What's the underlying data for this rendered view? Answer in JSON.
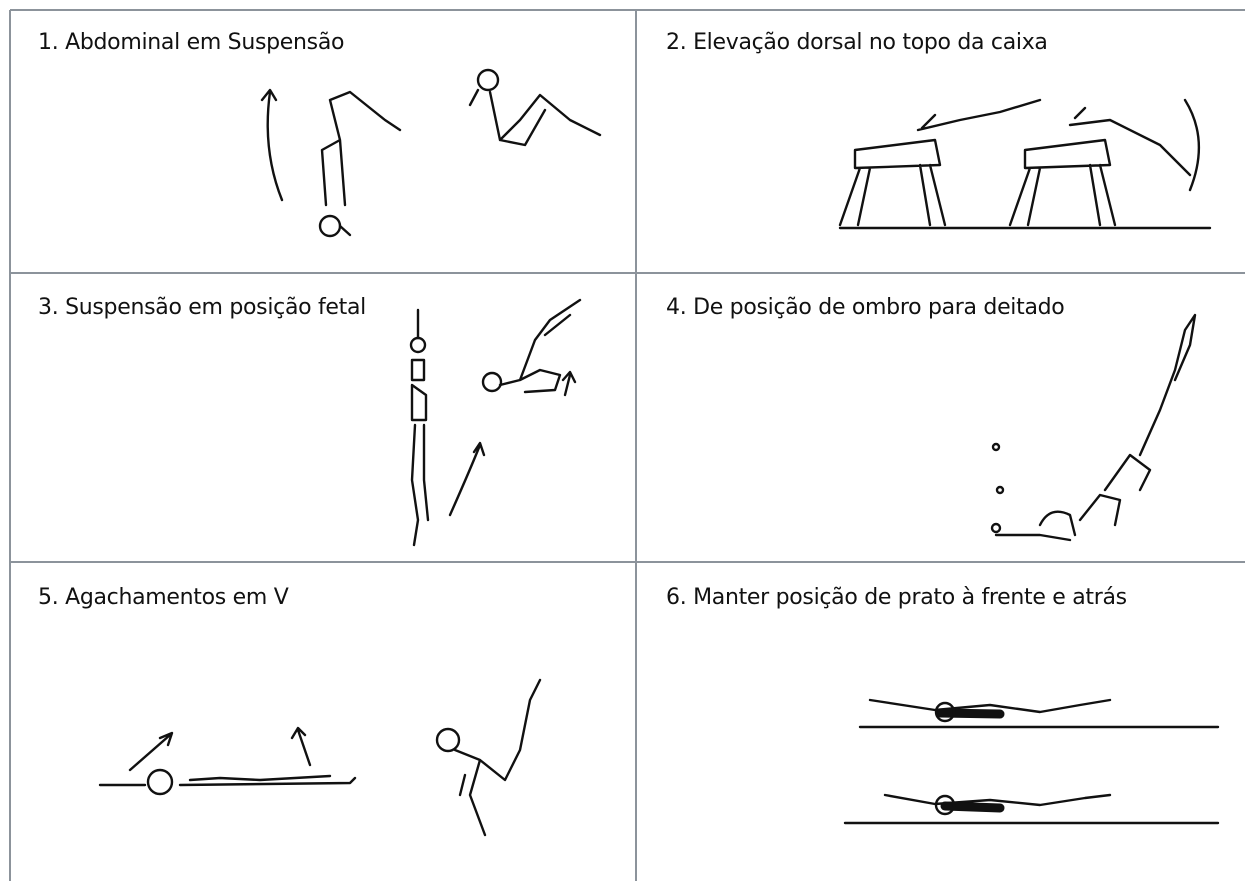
{
  "cells": [
    {
      "label": "1. Abdominal em Suspensão"
    },
    {
      "label": "2. Elevação dorsal no topo da caixa"
    },
    {
      "label": "3. Suspensão em posição fetal"
    },
    {
      "label": "4. De posição de ombro para deitado"
    },
    {
      "label": "5. Agachamentos em V"
    },
    {
      "label": "6. Manter posição de prato à frente e atrás"
    }
  ]
}
